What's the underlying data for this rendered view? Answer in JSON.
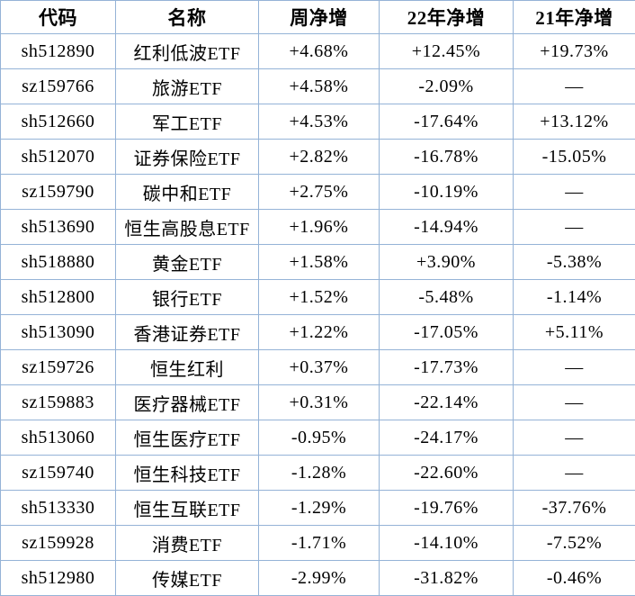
{
  "colors": {
    "positive": "#fe0000",
    "negative": "#00b050",
    "neutral": "#000000",
    "border": "#95b3d7",
    "background": "#ffffff"
  },
  "chart_data": {
    "type": "table",
    "title": "",
    "columns": [
      "代码",
      "名称",
      "周净增",
      "22年净增",
      "21年净增"
    ],
    "rows": [
      [
        "sh512890",
        "红利低波ETF",
        "+4.68%",
        "+12.45%",
        "+19.73%"
      ],
      [
        "sz159766",
        "旅游ETF",
        "+4.58%",
        "-2.09%",
        "—"
      ],
      [
        "sh512660",
        "军工ETF",
        "+4.53%",
        "-17.64%",
        "+13.12%"
      ],
      [
        "sh512070",
        "证券保险ETF",
        "+2.82%",
        "-16.78%",
        "-15.05%"
      ],
      [
        "sz159790",
        "碳中和ETF",
        "+2.75%",
        "-10.19%",
        "—"
      ],
      [
        "sh513690",
        "恒生高股息ETF",
        "+1.96%",
        "-14.94%",
        "—"
      ],
      [
        "sh518880",
        "黄金ETF",
        "+1.58%",
        "+3.90%",
        "-5.38%"
      ],
      [
        "sh512800",
        "银行ETF",
        "+1.52%",
        "-5.48%",
        "-1.14%"
      ],
      [
        "sh513090",
        "香港证券ETF",
        "+1.22%",
        "-17.05%",
        "+5.11%"
      ],
      [
        "sz159726",
        "恒生红利",
        "+0.37%",
        "-17.73%",
        "—"
      ],
      [
        "sz159883",
        "医疗器械ETF",
        "+0.31%",
        "-22.14%",
        "—"
      ],
      [
        "sh513060",
        "恒生医疗ETF",
        "-0.95%",
        "-24.17%",
        "—"
      ],
      [
        "sz159740",
        "恒生科技ETF",
        "-1.28%",
        "-22.60%",
        "—"
      ],
      [
        "sh513330",
        "恒生互联ETF",
        "-1.29%",
        "-19.76%",
        "-37.76%"
      ],
      [
        "sz159928",
        "消费ETF",
        "-1.71%",
        "-14.10%",
        "-7.52%"
      ],
      [
        "sh512980",
        "传媒ETF",
        "-2.99%",
        "-31.82%",
        "-0.46%"
      ]
    ]
  }
}
